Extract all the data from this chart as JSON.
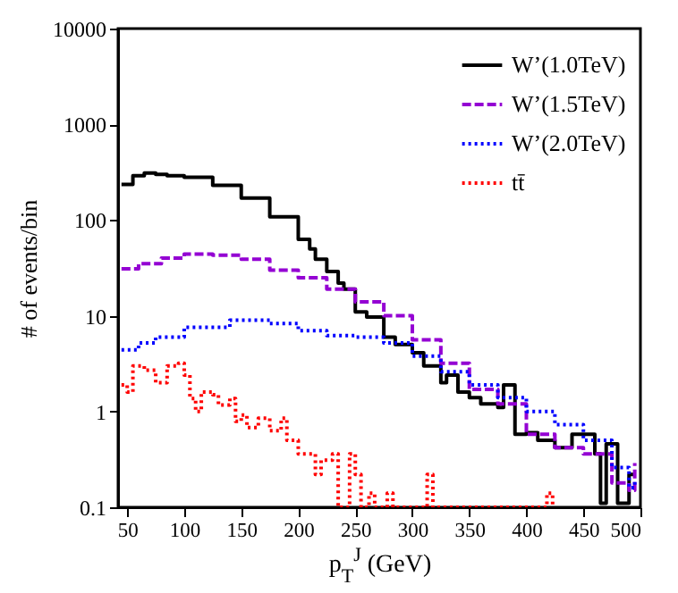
{
  "chart_data": {
    "type": "step",
    "xlabel": "p$_{T}$$^{J}$ (GeV)",
    "ylabel": "# of events/bin",
    "xlim": [
      42,
      500
    ],
    "xticks": [
      50,
      100,
      150,
      200,
      250,
      300,
      350,
      400,
      450,
      500
    ],
    "ylim": [
      0.1,
      10000
    ],
    "yticks": [
      0.1,
      1,
      10,
      100,
      1000,
      10000
    ],
    "log": "y",
    "grid": false,
    "legend": "top right",
    "series": [
      {
        "name": "W’(1.0TeV)",
        "color": "#000000",
        "line_style": "solid",
        "x": [
          45,
          55,
          65,
          75,
          85,
          100,
          125,
          150,
          175,
          200,
          210,
          215,
          225,
          235,
          240,
          250,
          260,
          275,
          285,
          300,
          310,
          325,
          330,
          340,
          350,
          360,
          375,
          380,
          390,
          400,
          410,
          425,
          440,
          460,
          465,
          470,
          480,
          490,
          495
        ],
        "values": [
          235,
          290,
          310,
          300,
          290,
          280,
          230,
          170,
          108,
          63,
          50,
          39,
          29,
          22,
          19,
          11,
          9.7,
          6,
          5,
          4.1,
          3,
          2,
          2.4,
          1.6,
          1.4,
          1.2,
          1.1,
          1.9,
          0.58,
          0.6,
          0.5,
          0.42,
          0.58,
          0.36,
          0.11,
          0.46,
          0.11,
          0.22,
          0.22
        ]
      },
      {
        "name": "W’(1.5TeV)",
        "color": "#9400d3",
        "line_style": "dashed",
        "x": [
          45,
          60,
          80,
          100,
          125,
          150,
          175,
          200,
          225,
          250,
          275,
          300,
          325,
          350,
          375,
          400,
          425,
          450,
          475,
          490,
          495
        ],
        "values": [
          31,
          35,
          40,
          44,
          43,
          39,
          30,
          25,
          19,
          14,
          10,
          5.6,
          3.2,
          1.7,
          1.2,
          0.58,
          0.42,
          0.36,
          0.18,
          0.15,
          0.29
        ]
      },
      {
        "name": "W’(2.0TeV)",
        "color": "#0000ff",
        "line_style": "dotted",
        "x": [
          45,
          60,
          75,
          100,
          140,
          175,
          200,
          225,
          250,
          275,
          300,
          325,
          350,
          375,
          400,
          425,
          450,
          475,
          490,
          495
        ],
        "values": [
          4.4,
          5.2,
          6,
          7.6,
          9,
          8.3,
          7,
          6.2,
          6,
          5.2,
          3.8,
          2.6,
          1.9,
          1.4,
          1,
          0.73,
          0.5,
          0.26,
          0.16,
          0.19
        ]
      },
      {
        "name": "tt̄",
        "color": "#ff0000",
        "line_style": "dotted",
        "x": [
          45,
          50,
          55,
          65,
          75,
          85,
          95,
          100,
          105,
          110,
          115,
          125,
          130,
          140,
          145,
          150,
          155,
          165,
          175,
          185,
          190,
          200,
          210,
          215,
          220,
          230,
          235,
          245,
          250,
          255,
          262,
          267,
          278,
          283,
          313,
          318,
          418,
          423
        ],
        "values": [
          1.9,
          1.6,
          3,
          2.7,
          2,
          3,
          3.2,
          2.4,
          1.37,
          1,
          1.6,
          1.5,
          1.17,
          1.37,
          0.79,
          0.92,
          0.68,
          0.85,
          0.63,
          0.85,
          0.5,
          0.36,
          0.36,
          0.22,
          0.31,
          0.36,
          0.1,
          0.36,
          0.22,
          0.1,
          0.14,
          0.1,
          0.14,
          0.1,
          0.22,
          0.1,
          0.14,
          0.1
        ]
      }
    ]
  }
}
